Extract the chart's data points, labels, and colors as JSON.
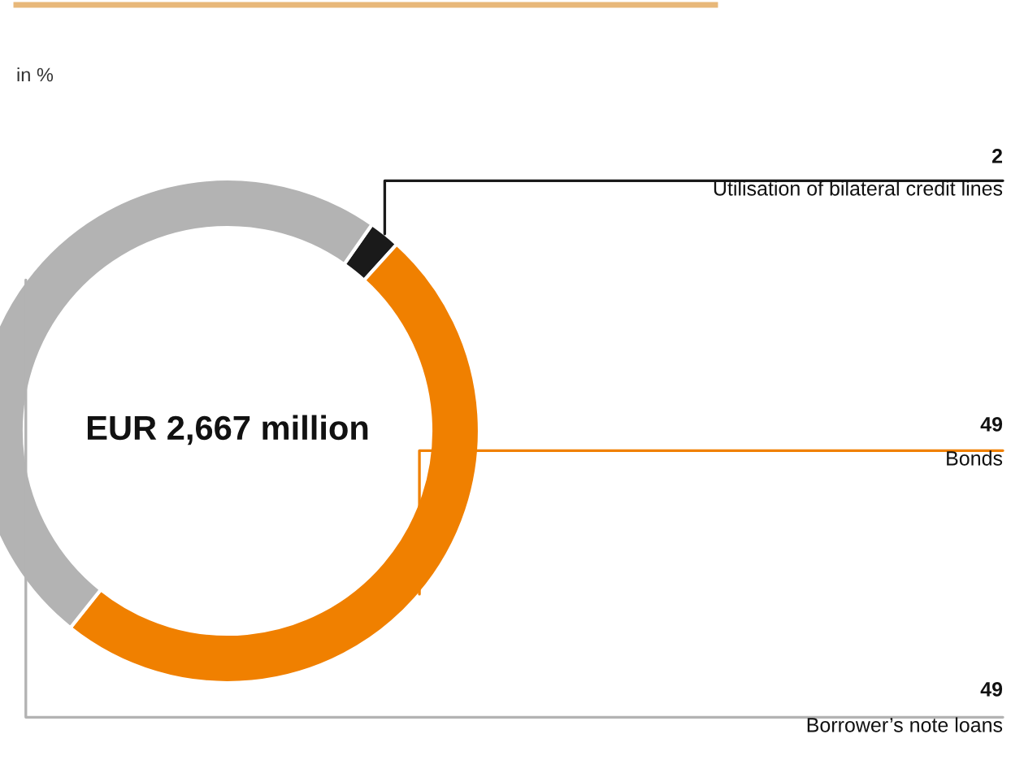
{
  "chart_data": {
    "type": "donut",
    "subtitle": "in %",
    "annotations": [
      "EUR 2,667 million"
    ],
    "categories": [
      "Utilisation of bilateral credit lines",
      "Bonds",
      "Borrower’s note loans"
    ],
    "values": [
      2,
      49,
      49
    ],
    "colors": [
      "#1a1a1a",
      "#f08000",
      "#b3b3b3"
    ],
    "data_labels": true
  }
}
